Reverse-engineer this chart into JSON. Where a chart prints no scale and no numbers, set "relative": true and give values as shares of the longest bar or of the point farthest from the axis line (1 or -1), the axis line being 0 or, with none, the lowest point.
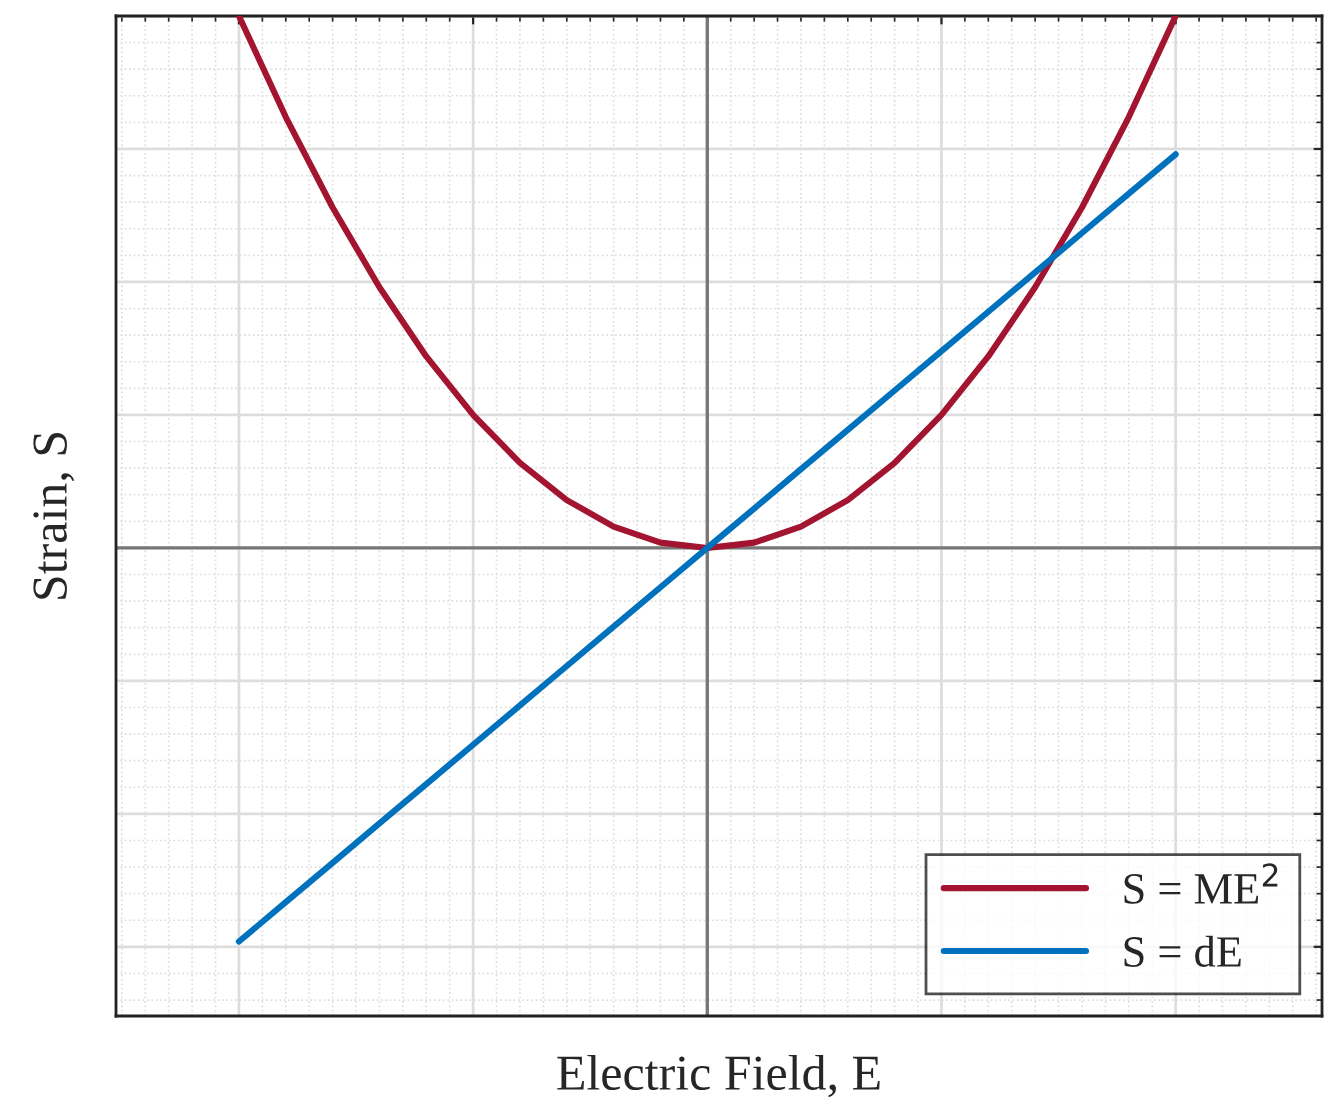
{
  "chart_data": {
    "type": "line",
    "relative": true,
    "xlabel": "Electric Field, E",
    "ylabel": "Strain, S",
    "categories": [
      null,
      null,
      null,
      null,
      null,
      null,
      null,
      null,
      null,
      null,
      null,
      null,
      null,
      null,
      null,
      null,
      null,
      null,
      null,
      null,
      null
    ],
    "series": [
      {
        "name": "S = ME$^{2}$",
        "color": "#a2142f",
        "values": [
          1.0,
          0.81,
          0.64,
          0.49,
          0.36,
          0.25,
          0.16,
          0.09,
          0.04,
          0.01,
          0.0,
          0.01,
          0.04,
          0.09,
          0.16,
          0.25,
          0.36,
          0.49,
          0.64,
          0.81,
          1.0
        ]
      },
      {
        "name": "S = dE",
        "color": "#0072bd",
        "values": [
          -0.74,
          -0.666,
          -0.592,
          -0.518,
          -0.444,
          -0.37,
          -0.296,
          -0.222,
          -0.148,
          -0.074,
          0.0,
          0.074,
          0.148,
          0.222,
          0.296,
          0.37,
          0.444,
          0.518,
          0.592,
          0.666,
          0.74
        ]
      }
    ],
    "grid": true,
    "legend": "bottom right"
  }
}
